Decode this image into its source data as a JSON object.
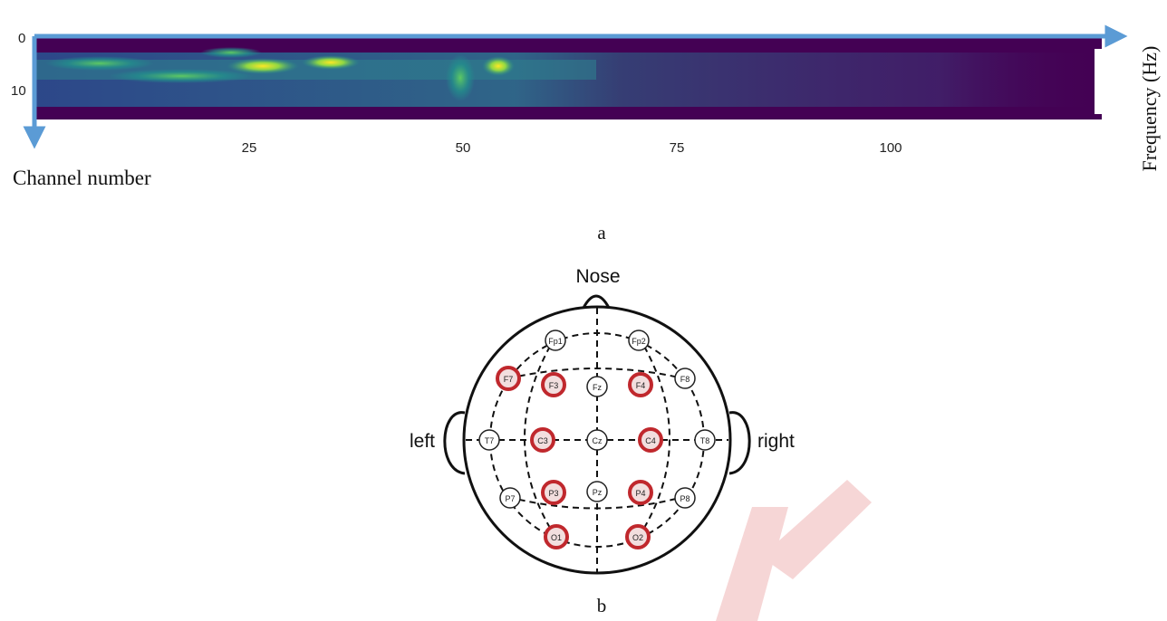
{
  "panel_a": {
    "xlabel": "Channel number",
    "ylabel": "Frequency (Hz)",
    "caption": "a",
    "y_ticks": [
      "0",
      "10"
    ],
    "x_ticks": [
      "25",
      "50",
      "75",
      "100"
    ]
  },
  "panel_b": {
    "nose_label": "Nose",
    "left_label": "left",
    "right_label": "right",
    "caption": "b",
    "electrodes": [
      {
        "name": "Fp1",
        "highlighted": false
      },
      {
        "name": "Fp2",
        "highlighted": false
      },
      {
        "name": "F7",
        "highlighted": true
      },
      {
        "name": "F3",
        "highlighted": true
      },
      {
        "name": "Fz",
        "highlighted": false
      },
      {
        "name": "F4",
        "highlighted": true
      },
      {
        "name": "F8",
        "highlighted": false
      },
      {
        "name": "T7",
        "highlighted": false
      },
      {
        "name": "C3",
        "highlighted": true
      },
      {
        "name": "Cz",
        "highlighted": false
      },
      {
        "name": "C4",
        "highlighted": true
      },
      {
        "name": "T8",
        "highlighted": false
      },
      {
        "name": "P7",
        "highlighted": false
      },
      {
        "name": "P3",
        "highlighted": true
      },
      {
        "name": "Pz",
        "highlighted": false
      },
      {
        "name": "P4",
        "highlighted": true
      },
      {
        "name": "P8",
        "highlighted": false
      },
      {
        "name": "O1",
        "highlighted": true
      },
      {
        "name": "O2",
        "highlighted": true
      }
    ]
  },
  "colors": {
    "axis_arrow": "#5b9bd5",
    "highlight_ring": "#c0282d",
    "heatmap_bg": "#440154",
    "heatmap_mid": "#2c728e",
    "heatmap_hot": "#fde725",
    "watermark": "#f5cfcf"
  }
}
